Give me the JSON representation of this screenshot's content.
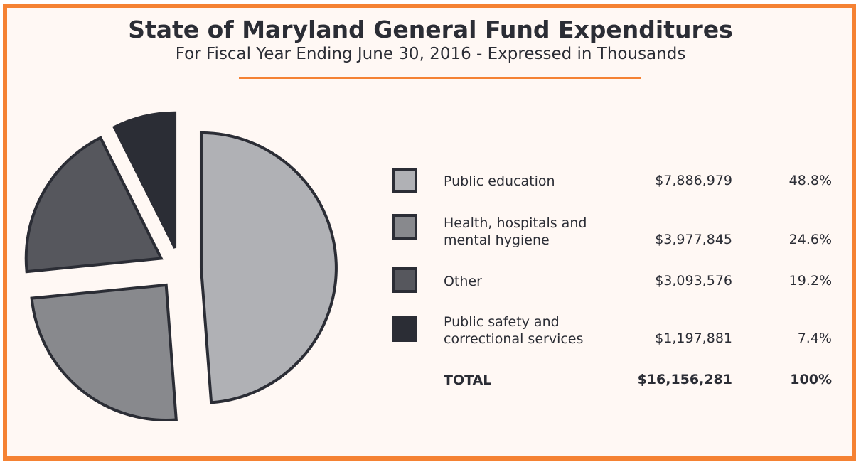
{
  "title": "State of Maryland General Fund Expenditures",
  "subtitle": "For Fiscal Year Ending June 30, 2016 - Expressed in Thousands",
  "chart_data": {
    "type": "pie",
    "title": "State of Maryland General Fund Expenditures",
    "subtitle": "For Fiscal Year Ending June 30, 2016 - Expressed in Thousands",
    "slices": [
      {
        "label_line1": "Public education",
        "label_line2": "",
        "value": 7886979,
        "value_text": "$7,886,979",
        "percent": 48.8,
        "percent_text": "48.8%",
        "color": "#b0b1b5"
      },
      {
        "label_line1": "Health, hospitals and",
        "label_line2": "mental hygiene",
        "value": 3977845,
        "value_text": "$3,977,845",
        "percent": 24.6,
        "percent_text": "24.6%",
        "color": "#88898d"
      },
      {
        "label_line1": "Other",
        "label_line2": "",
        "value": 3093576,
        "value_text": "$3,093,576",
        "percent": 19.2,
        "percent_text": "19.2%",
        "color": "#56575d"
      },
      {
        "label_line1": "Public safety and",
        "label_line2": "correctional services",
        "value": 1197881,
        "value_text": "$1,197,881",
        "percent": 7.4,
        "percent_text": "7.4%",
        "color": "#2b2d35"
      }
    ],
    "total": {
      "label": "TOTAL",
      "value": 16156281,
      "value_text": "$16,156,281",
      "percent_text": "100%"
    },
    "stroke_color": "#2b2d35",
    "legend_placement": "right"
  }
}
